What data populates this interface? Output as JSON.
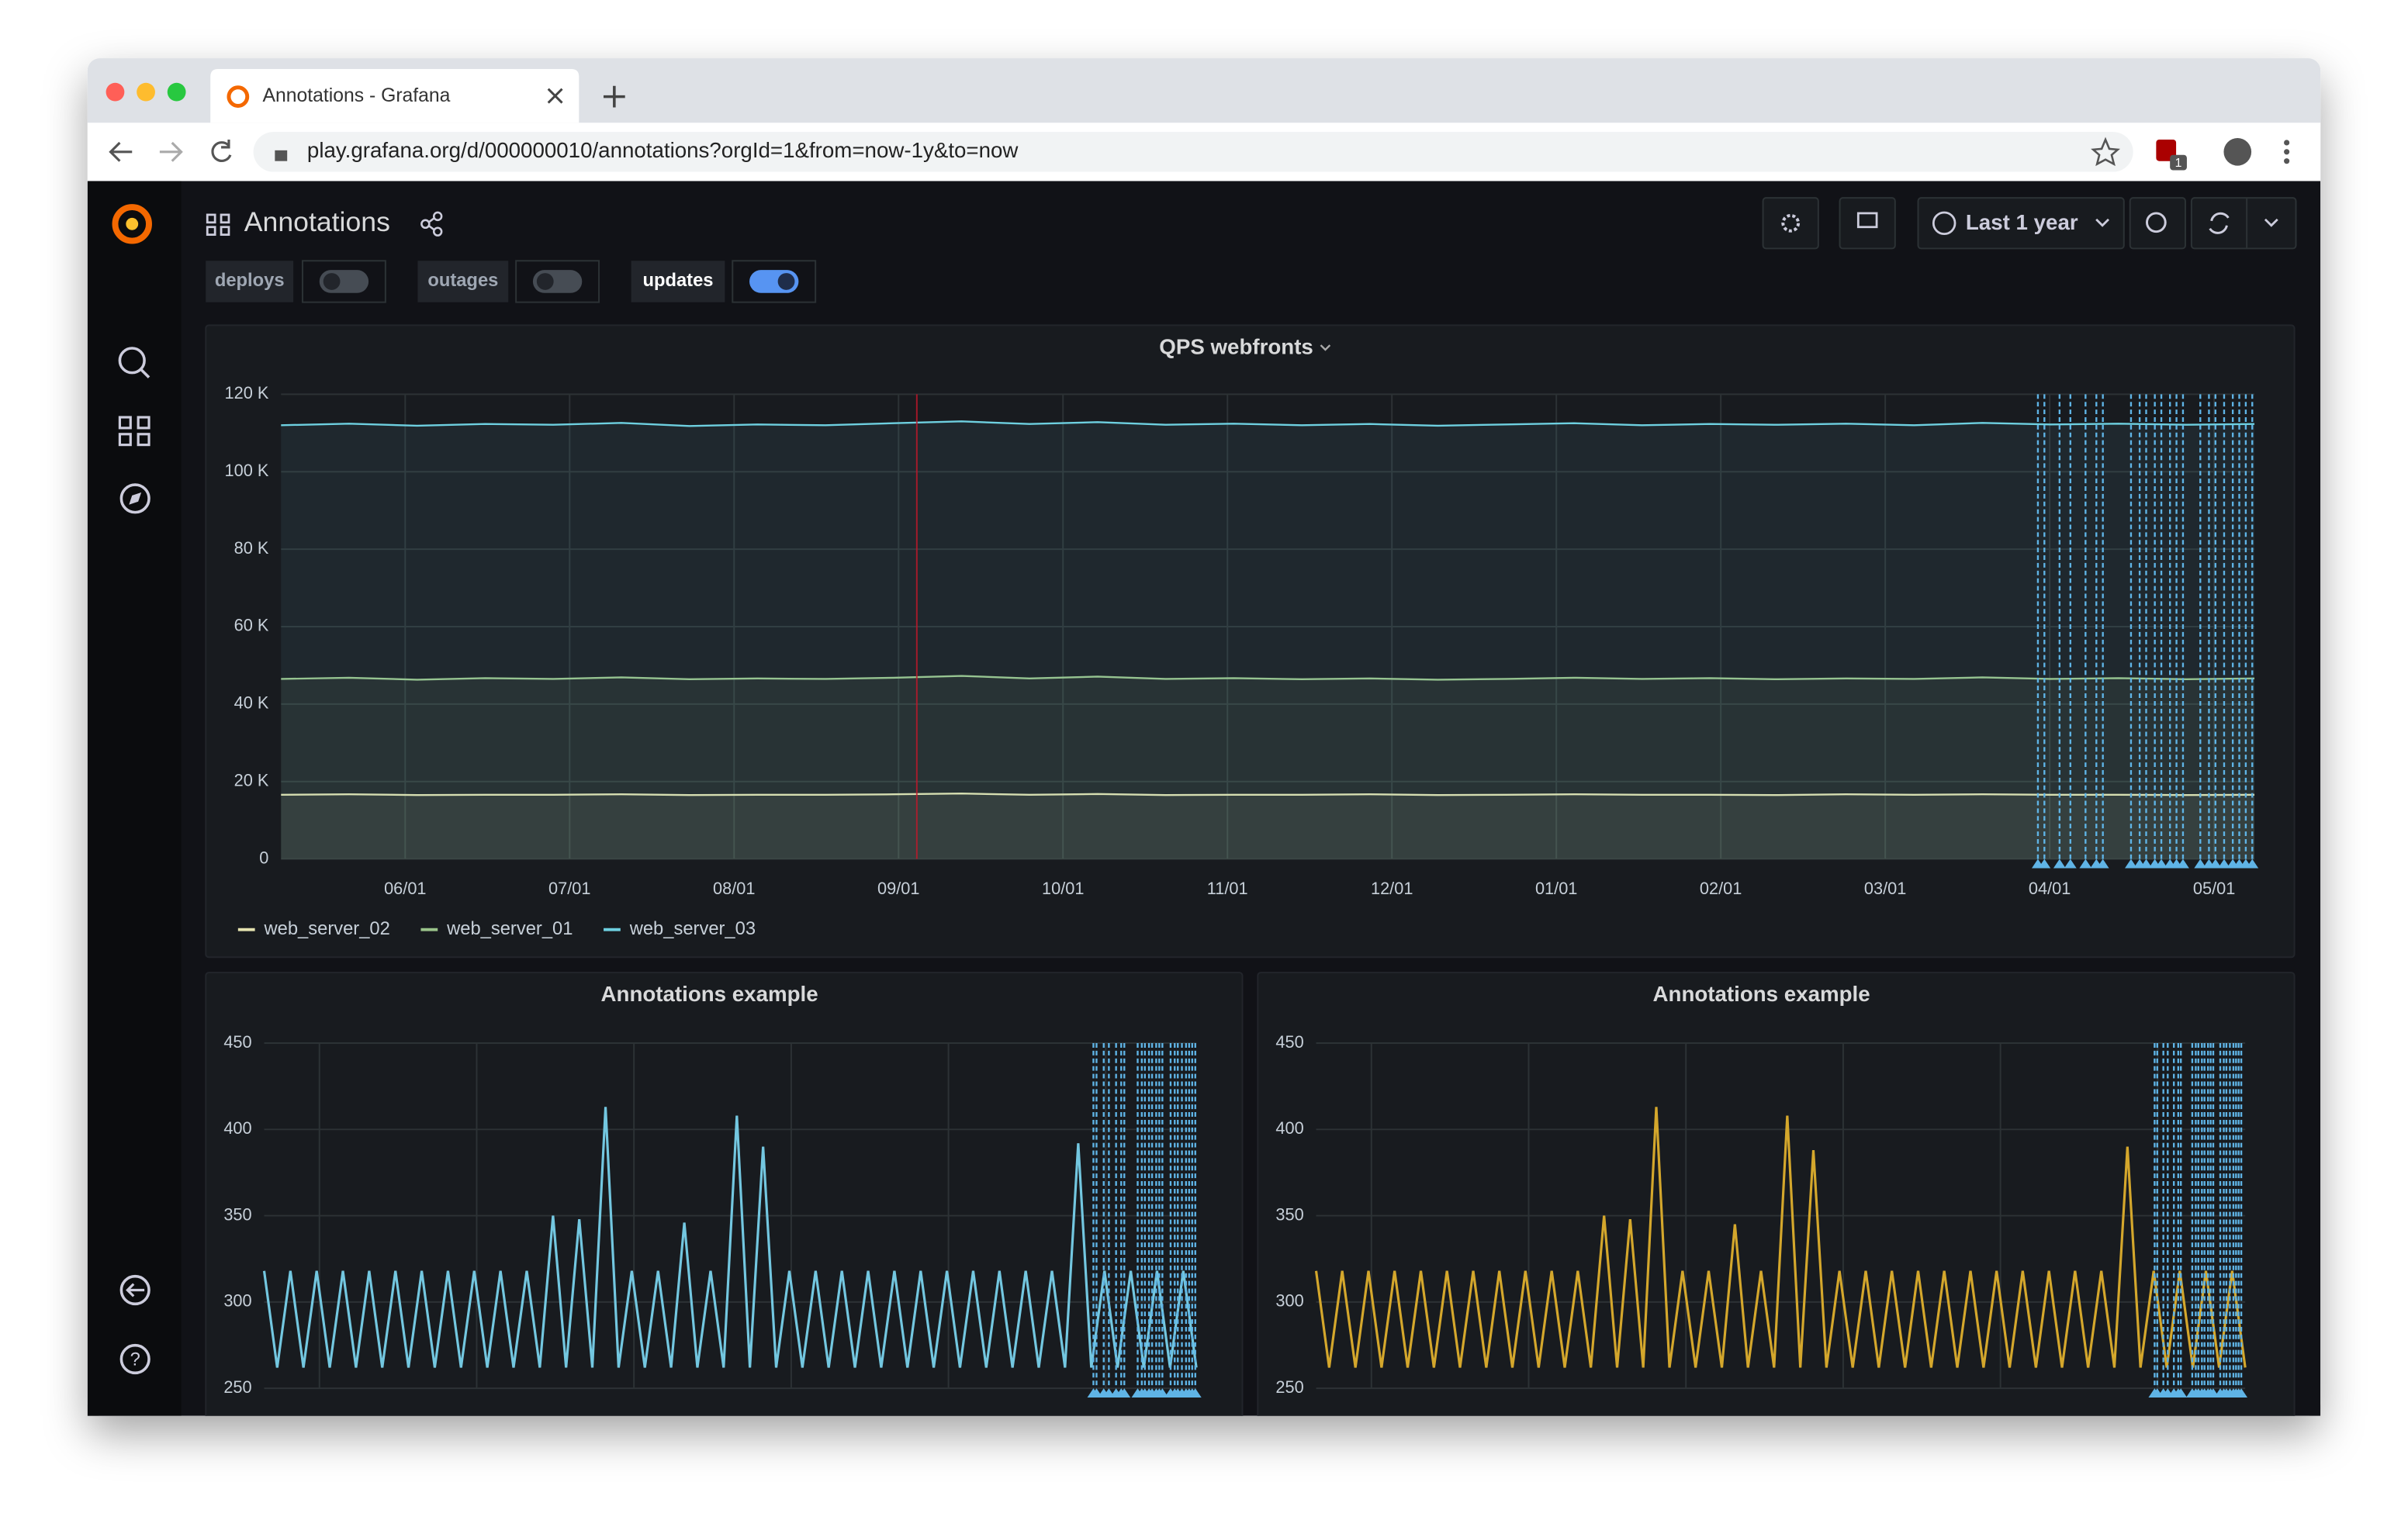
{
  "browser": {
    "tab_title": "Annotations - Grafana",
    "url": "play.grafana.org/d/000000010/annotations?orgId=1&from=now-1y&to=now",
    "extension_badge": "1"
  },
  "dashboard": {
    "title": "Annotations",
    "time_range": "Last 1 year",
    "variables": [
      {
        "label": "deploys",
        "enabled": false
      },
      {
        "label": "outages",
        "enabled": false
      },
      {
        "label": "updates",
        "enabled": true
      }
    ]
  },
  "panels": [
    {
      "type": "line",
      "title": "QPS webfronts",
      "ylim": [
        0,
        120000
      ],
      "yticks": [
        0,
        {
          "value": 20000,
          "label": "20 K"
        },
        {
          "value": 40000,
          "label": "40 K"
        },
        {
          "value": 60000,
          "label": "60 K"
        },
        {
          "value": 80000,
          "label": "80 K"
        },
        {
          "value": 100000,
          "label": "100 K"
        },
        {
          "value": 120000,
          "label": "120 K"
        }
      ],
      "x_labels": [
        "06/01",
        "07/01",
        "08/01",
        "09/01",
        "10/01",
        "11/01",
        "12/01",
        "01/01",
        "02/01",
        "03/01",
        "04/01",
        "05/01"
      ],
      "grid": true,
      "legend": true,
      "series": [
        {
          "name": "web_server_02",
          "color": "#e5e3b0",
          "values": [
            16600,
            16700,
            16500,
            16600,
            16600,
            16700,
            16500,
            16600,
            16600,
            16700,
            16900,
            16600,
            16800,
            16500,
            16600,
            16600,
            16700,
            16500,
            16600,
            16700,
            16600,
            16600,
            16500,
            16700,
            16600,
            16700,
            16600,
            16600,
            16500,
            16600
          ]
        },
        {
          "name": "web_server_01",
          "color": "#9ac48a",
          "values": [
            46500,
            46800,
            46300,
            46700,
            46500,
            46900,
            46400,
            46600,
            46500,
            46800,
            47300,
            46600,
            47100,
            46500,
            46700,
            46400,
            46600,
            46300,
            46500,
            46800,
            46500,
            46700,
            46400,
            46600,
            46500,
            46900,
            46500,
            46700,
            46400,
            46600
          ]
        },
        {
          "name": "web_server_03",
          "color": "#6ed0e0",
          "values": [
            112000,
            112400,
            111900,
            112300,
            112100,
            112600,
            111800,
            112200,
            112000,
            112500,
            113000,
            112300,
            112800,
            112100,
            112400,
            112000,
            112300,
            111900,
            112200,
            112500,
            112000,
            112300,
            112100,
            112400,
            112000,
            112600,
            112200,
            112400,
            112100,
            112300
          ]
        }
      ]
    },
    {
      "type": "line",
      "title": "Annotations example",
      "ylim": [
        250,
        450
      ],
      "yticks": [
        250,
        300,
        350,
        400,
        450
      ],
      "grid": true,
      "legend": false,
      "series": [
        {
          "color": "#73c7e0",
          "values": [
            318,
            262,
            318,
            262,
            318,
            262,
            318,
            262,
            318,
            262,
            318,
            262,
            318,
            262,
            318,
            262,
            318,
            262,
            318,
            262,
            318,
            262,
            350,
            262,
            348,
            262,
            413,
            262,
            318,
            262,
            318,
            262,
            346,
            262,
            318,
            262,
            408,
            262,
            390,
            262,
            318,
            262,
            318,
            262,
            318,
            262,
            318,
            262,
            318,
            262,
            318,
            262,
            318,
            262,
            318,
            262,
            318,
            262,
            318,
            262,
            318,
            262,
            392,
            262,
            318,
            262,
            318,
            262,
            318,
            262,
            318,
            262
          ]
        }
      ]
    },
    {
      "type": "line",
      "title": "Annotations example",
      "ylim": [
        250,
        450
      ],
      "yticks": [
        250,
        300,
        350,
        400,
        450
      ],
      "grid": true,
      "legend": false,
      "series": [
        {
          "color": "#d4a72c",
          "values": [
            318,
            262,
            318,
            262,
            318,
            262,
            318,
            262,
            318,
            262,
            318,
            262,
            318,
            262,
            318,
            262,
            318,
            262,
            318,
            262,
            318,
            262,
            350,
            262,
            348,
            262,
            413,
            262,
            318,
            262,
            318,
            262,
            345,
            262,
            318,
            262,
            408,
            262,
            388,
            262,
            318,
            262,
            318,
            262,
            318,
            262,
            318,
            262,
            318,
            262,
            318,
            262,
            318,
            262,
            318,
            262,
            318,
            262,
            318,
            262,
            318,
            262,
            390,
            262,
            318,
            262,
            318,
            262,
            318,
            262,
            318,
            262
          ]
        }
      ]
    }
  ]
}
